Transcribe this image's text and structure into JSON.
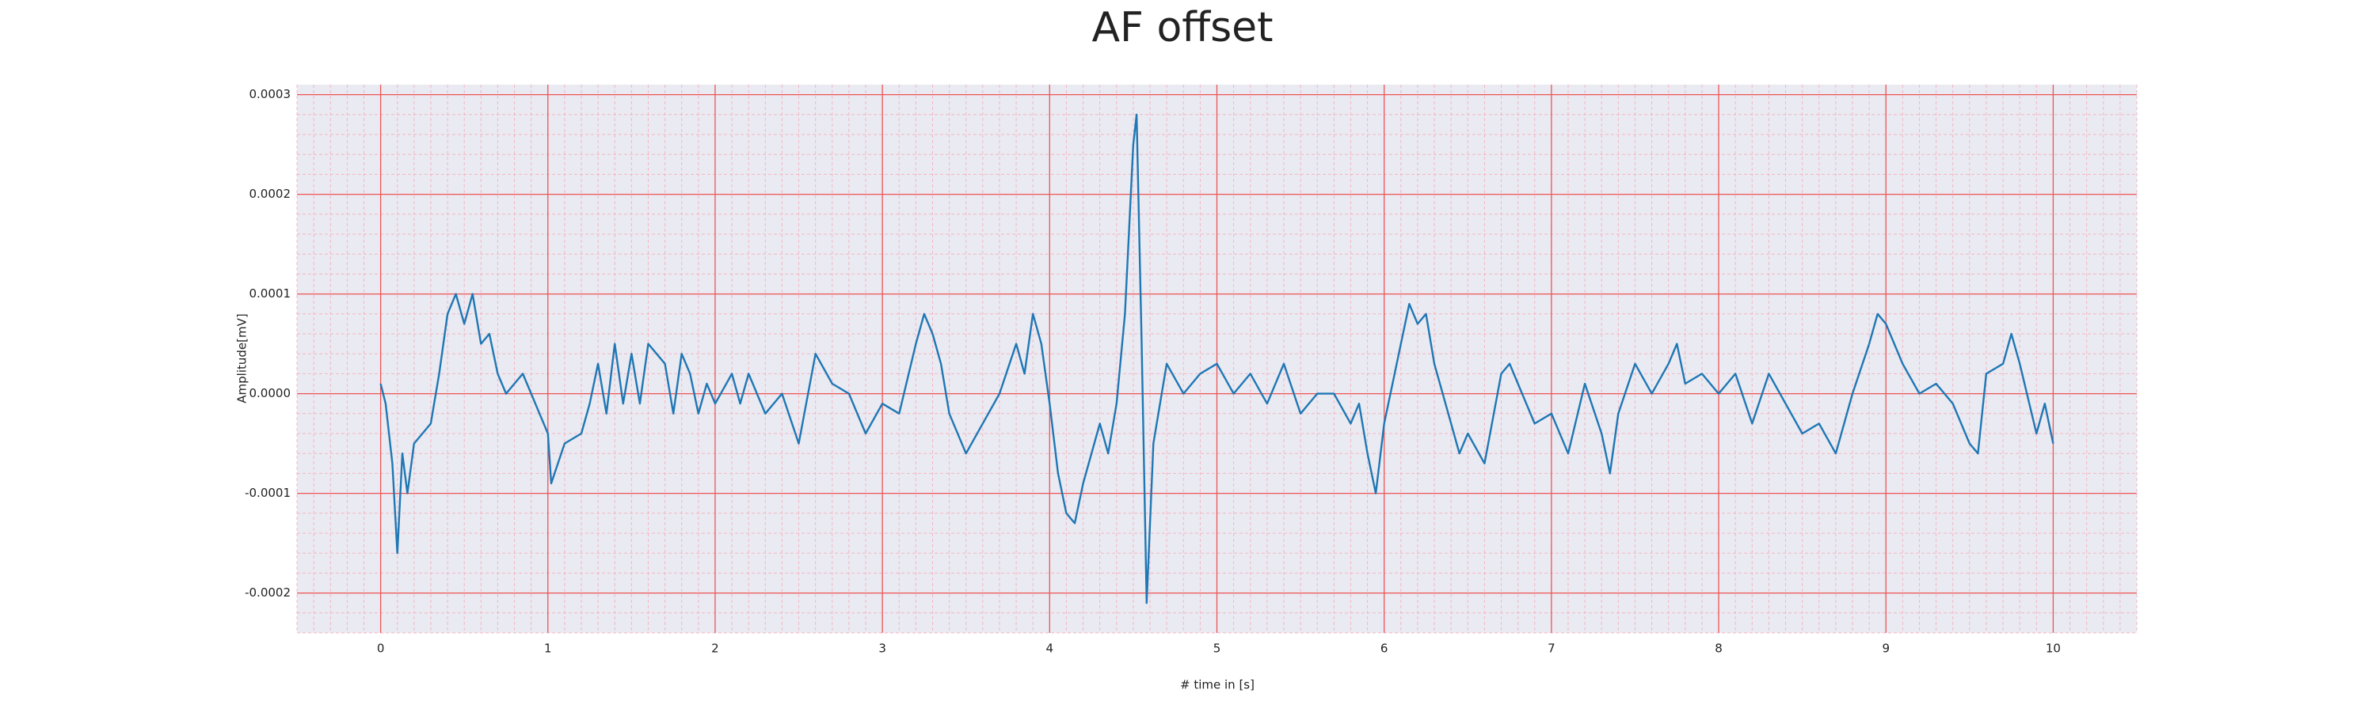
{
  "chart_data": {
    "type": "line",
    "title": "AF offset",
    "xlabel": "# time in [s]",
    "ylabel": "Amplitude[mV]",
    "x": [
      0,
      0.03,
      0.07,
      0.1,
      0.13,
      0.16,
      0.2,
      0.25,
      0.3,
      0.35,
      0.4,
      0.45,
      0.5,
      0.55,
      0.6,
      0.65,
      0.7,
      0.75,
      0.8,
      0.85,
      0.9,
      0.95,
      1.0,
      1.02,
      1.1,
      1.2,
      1.25,
      1.3,
      1.35,
      1.4,
      1.45,
      1.5,
      1.55,
      1.6,
      1.7,
      1.75,
      1.8,
      1.85,
      1.9,
      1.95,
      2.0,
      2.1,
      2.15,
      2.2,
      2.3,
      2.4,
      2.5,
      2.6,
      2.7,
      2.8,
      2.9,
      3.0,
      3.1,
      3.2,
      3.25,
      3.3,
      3.35,
      3.4,
      3.5,
      3.6,
      3.7,
      3.8,
      3.85,
      3.9,
      3.95,
      4.0,
      4.05,
      4.1,
      4.15,
      4.2,
      4.3,
      4.35,
      4.4,
      4.45,
      4.5,
      4.52,
      4.55,
      4.58,
      4.62,
      4.7,
      4.8,
      4.9,
      5.0,
      5.1,
      5.2,
      5.3,
      5.4,
      5.5,
      5.6,
      5.7,
      5.8,
      5.85,
      5.9,
      5.95,
      6.0,
      6.1,
      6.15,
      6.2,
      6.25,
      6.3,
      6.4,
      6.45,
      6.5,
      6.6,
      6.7,
      6.75,
      6.8,
      6.9,
      7.0,
      7.1,
      7.2,
      7.3,
      7.35,
      7.4,
      7.5,
      7.6,
      7.7,
      7.75,
      7.8,
      7.9,
      8.0,
      8.1,
      8.2,
      8.3,
      8.4,
      8.5,
      8.6,
      8.7,
      8.8,
      8.9,
      8.95,
      9.0,
      9.1,
      9.2,
      9.3,
      9.4,
      9.5,
      9.55,
      9.6,
      9.7,
      9.75,
      9.8,
      9.9,
      9.95,
      10.0
    ],
    "series": [
      {
        "name": "AF offset",
        "color": "#1f77b4",
        "values": [
          1e-05,
          -1e-05,
          -7e-05,
          -0.00016,
          -6e-05,
          -0.0001,
          -5e-05,
          -4e-05,
          -3e-05,
          2e-05,
          8e-05,
          0.0001,
          7e-05,
          0.0001,
          5e-05,
          6e-05,
          2e-05,
          0,
          1e-05,
          2e-05,
          0,
          -2e-05,
          -4e-05,
          -9e-05,
          -5e-05,
          -4e-05,
          -1e-05,
          3e-05,
          -2e-05,
          5e-05,
          -1e-05,
          4e-05,
          -1e-05,
          5e-05,
          3e-05,
          -2e-05,
          4e-05,
          2e-05,
          -2e-05,
          1e-05,
          -1e-05,
          2e-05,
          -1e-05,
          2e-05,
          -2e-05,
          0,
          -5e-05,
          4e-05,
          1e-05,
          0,
          -4e-05,
          -1e-05,
          -2e-05,
          5e-05,
          8e-05,
          6e-05,
          3e-05,
          -2e-05,
          -6e-05,
          -3e-05,
          0,
          5e-05,
          2e-05,
          8e-05,
          5e-05,
          -1e-05,
          -8e-05,
          -0.00012,
          -0.00013,
          -9e-05,
          -3e-05,
          -6e-05,
          -1e-05,
          8e-05,
          0.00025,
          0.00028,
          5e-05,
          -0.00021,
          -5e-05,
          3e-05,
          0,
          2e-05,
          3e-05,
          0,
          2e-05,
          -1e-05,
          3e-05,
          -2e-05,
          0,
          0,
          -3e-05,
          -1e-05,
          -6e-05,
          -0.0001,
          -3e-05,
          5e-05,
          9e-05,
          7e-05,
          8e-05,
          3e-05,
          -3e-05,
          -6e-05,
          -4e-05,
          -7e-05,
          2e-05,
          3e-05,
          1e-05,
          -3e-05,
          -2e-05,
          -6e-05,
          1e-05,
          -4e-05,
          -8e-05,
          -2e-05,
          3e-05,
          0,
          3e-05,
          5e-05,
          1e-05,
          2e-05,
          0,
          2e-05,
          -3e-05,
          2e-05,
          -1e-05,
          -4e-05,
          -3e-05,
          -6e-05,
          0,
          5e-05,
          8e-05,
          7e-05,
          3e-05,
          0,
          1e-05,
          -1e-05,
          -5e-05,
          -6e-05,
          2e-05,
          3e-05,
          6e-05,
          3e-05,
          -4e-05,
          -1e-05,
          -5e-05
        ]
      }
    ],
    "xlim": [
      -0.5,
      10.5
    ],
    "xticks": [
      0,
      1,
      2,
      3,
      4,
      5,
      6,
      7,
      8,
      9,
      10
    ],
    "ylim": [
      -0.00024,
      0.00031
    ],
    "yticks": [
      -0.0002,
      -0.0001,
      {
        "value": 0,
        "label": "0.0000"
      },
      0.0001,
      0.0002,
      0.0003
    ],
    "grid": true,
    "minor_grid": true
  }
}
